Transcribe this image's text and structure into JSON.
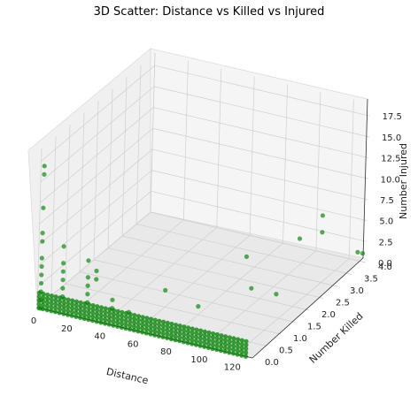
{
  "chart_data": {
    "type": "scatter",
    "projection": "3d",
    "title": "3D Scatter: Distance vs Killed vs Injured",
    "xlabel": "Distance",
    "ylabel": "Number Killed",
    "zlabel": "Number Injured",
    "xlim": [
      0,
      130
    ],
    "ylim": [
      0,
      4
    ],
    "zlim": [
      0,
      19
    ],
    "x_ticks": [
      "0",
      "20",
      "40",
      "60",
      "80",
      "100",
      "120"
    ],
    "y_ticks": [
      "0.0",
      "0.5",
      "1.0",
      "1.5",
      "2.0",
      "2.5",
      "3.0",
      "3.5",
      "4.0"
    ],
    "z_ticks": [
      "0.0",
      "2.5",
      "5.0",
      "7.5",
      "10.0",
      "12.5",
      "15.0",
      "17.5"
    ],
    "marker_color": "#008000",
    "grid": true,
    "points_note_x": [
      2,
      5,
      8,
      15,
      20,
      30,
      40,
      55,
      70,
      85,
      100,
      115,
      125
    ],
    "series": [
      {
        "values": [
          [
            2,
            0,
            17
          ],
          [
            2,
            0,
            16
          ],
          [
            2,
            0,
            12
          ],
          [
            2,
            0,
            9
          ],
          [
            2,
            0,
            8
          ],
          [
            2,
            0,
            6
          ],
          [
            2,
            0,
            5
          ],
          [
            2,
            0,
            4
          ],
          [
            2,
            0,
            3
          ],
          [
            2,
            0,
            2
          ],
          [
            2,
            0,
            1
          ],
          [
            2,
            0,
            0
          ],
          [
            15,
            0,
            8
          ],
          [
            15,
            0,
            6
          ],
          [
            15,
            0,
            5
          ],
          [
            15,
            0,
            4
          ],
          [
            15,
            0,
            3
          ],
          [
            15,
            0,
            2
          ],
          [
            30,
            0,
            7
          ],
          [
            30,
            0,
            5
          ],
          [
            30,
            0,
            4
          ],
          [
            30,
            0,
            3
          ],
          [
            30,
            0,
            2
          ],
          [
            35,
            0,
            6
          ],
          [
            35,
            0,
            5
          ],
          [
            45,
            0,
            3
          ],
          [
            45,
            0,
            2
          ],
          [
            55,
            0,
            2
          ],
          [
            75,
            3,
            1
          ],
          [
            90,
            4,
            1
          ],
          [
            60,
            1,
            2
          ],
          [
            80,
            1,
            1
          ],
          [
            95,
            2,
            1
          ],
          [
            110,
            2,
            1
          ],
          [
            120,
            3,
            8
          ],
          [
            120,
            3,
            6
          ],
          [
            125,
            4,
            1
          ],
          [
            128,
            4,
            1
          ]
        ]
      }
    ]
  }
}
